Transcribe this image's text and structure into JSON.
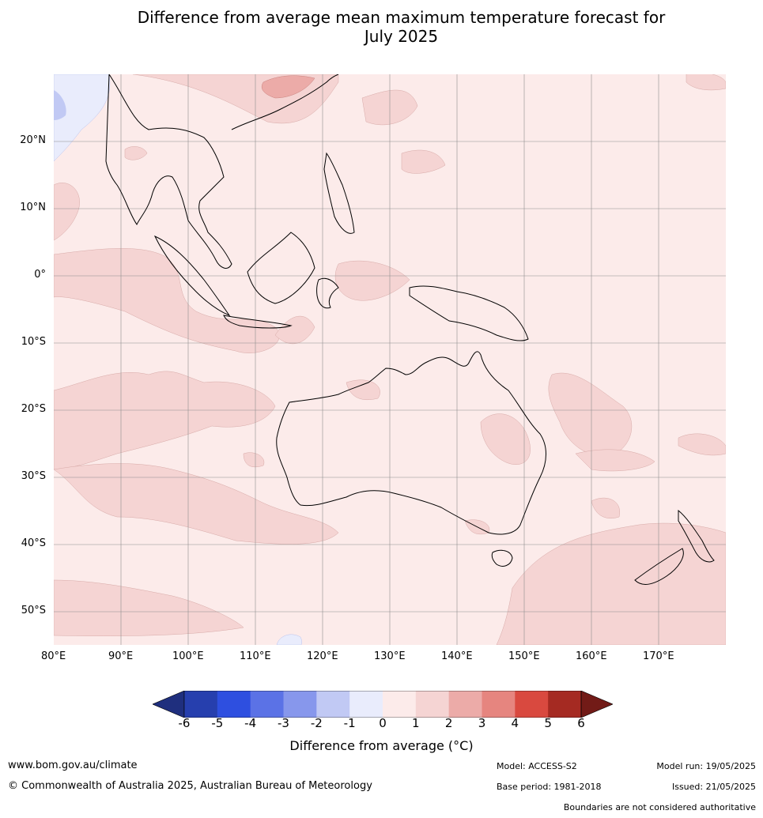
{
  "title_line1": "Difference from average mean maximum temperature forecast for",
  "title_line2": "July 2025",
  "lat_labels": [
    "20°N",
    "10°N",
    "0°",
    "10°S",
    "20°S",
    "30°S",
    "40°S",
    "50°S"
  ],
  "lon_labels": [
    "80°E",
    "90°E",
    "100°E",
    "110°E",
    "120°E",
    "130°E",
    "140°E",
    "150°E",
    "160°E",
    "170°E"
  ],
  "colorbar": {
    "ticks": [
      "-6",
      "-5",
      "-4",
      "-3",
      "-2",
      "-1",
      "0",
      "1",
      "2",
      "3",
      "4",
      "5",
      "6"
    ],
    "colors": [
      "#1f2f7e",
      "#263fae",
      "#2e4fe0",
      "#5b72e6",
      "#8797ec",
      "#c1c9f4",
      "#e9ecfc",
      "#fcebea",
      "#f5d4d3",
      "#ecaba8",
      "#e6857f",
      "#d9493f",
      "#a52a22",
      "#721b17"
    ],
    "title": "Difference from average (°C)"
  },
  "footer": {
    "website": "www.bom.gov.au/climate",
    "copyright": "© Commonwealth of Australia 2025, Australian Bureau of Meteorology",
    "model": "Model: ACCESS-S2",
    "base_period": "Base period: 1981-2018",
    "model_run": "Model run: 19/05/2025",
    "issued": "Issued: 21/05/2025",
    "disclaimer": "Boundaries are not considered authoritative"
  }
}
